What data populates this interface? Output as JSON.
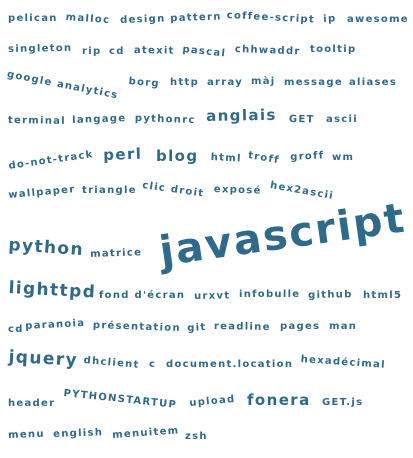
{
  "tag_color": "#2f6a8a",
  "tags": [
    {
      "text": "pelican"
    },
    {
      "text": "malloc"
    },
    {
      "text": "design pattern"
    },
    {
      "text": "coffee-script"
    },
    {
      "text": "ip"
    },
    {
      "text": "awesome"
    },
    {
      "text": "singleton"
    },
    {
      "text": "rip"
    },
    {
      "text": "cd"
    },
    {
      "text": "atexit"
    },
    {
      "text": "pascal"
    },
    {
      "text": "chhwaddr"
    },
    {
      "text": "tooltip"
    },
    {
      "text": "google analytics"
    },
    {
      "text": "borg"
    },
    {
      "text": "http"
    },
    {
      "text": "array"
    },
    {
      "text": "màj"
    },
    {
      "text": "message"
    },
    {
      "text": "aliases"
    },
    {
      "text": "terminal"
    },
    {
      "text": "langage"
    },
    {
      "text": "pythonrc"
    },
    {
      "text": "anglais"
    },
    {
      "text": "GET"
    },
    {
      "text": "ascii"
    },
    {
      "text": "do-not-track"
    },
    {
      "text": "perl"
    },
    {
      "text": "blog"
    },
    {
      "text": "html"
    },
    {
      "text": "troff"
    },
    {
      "text": "groff"
    },
    {
      "text": "wm"
    },
    {
      "text": "wallpaper"
    },
    {
      "text": "triangle"
    },
    {
      "text": "clic droit"
    },
    {
      "text": "exposé"
    },
    {
      "text": "hex2ascii"
    },
    {
      "text": "python"
    },
    {
      "text": "matrice"
    },
    {
      "text": "javascript"
    },
    {
      "text": "lighttpd"
    },
    {
      "text": "fond d'écran"
    },
    {
      "text": "urxvt"
    },
    {
      "text": "infobulle"
    },
    {
      "text": "github"
    },
    {
      "text": "html5"
    },
    {
      "text": "cd"
    },
    {
      "text": "paranoia"
    },
    {
      "text": "présentation"
    },
    {
      "text": "git"
    },
    {
      "text": "readline"
    },
    {
      "text": "pages"
    },
    {
      "text": "man"
    },
    {
      "text": "jquery"
    },
    {
      "text": "dhclient"
    },
    {
      "text": "c"
    },
    {
      "text": "document.location"
    },
    {
      "text": "hexadécimal"
    },
    {
      "text": "header"
    },
    {
      "text": "PYTHONSTARTUP"
    },
    {
      "text": "upload"
    },
    {
      "text": "fonera"
    },
    {
      "text": "GET.js"
    },
    {
      "text": "menu"
    },
    {
      "text": "english"
    },
    {
      "text": "menuitem"
    },
    {
      "text": "zsh"
    }
  ]
}
